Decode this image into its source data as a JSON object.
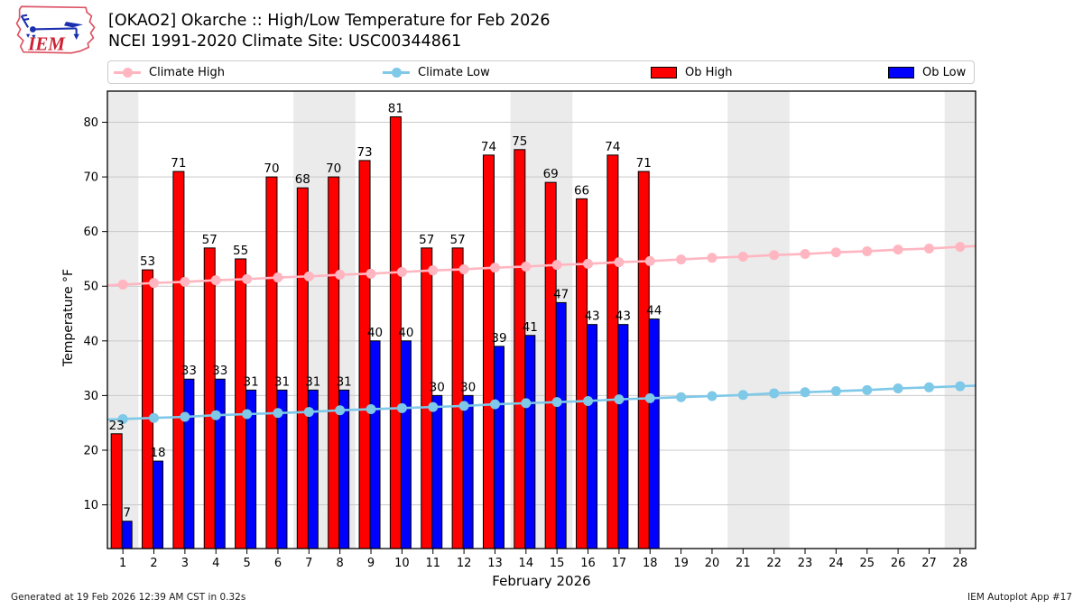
{
  "header": {
    "title_line1": "[OKAO2] Okarche :: High/Low Temperature for Feb 2026",
    "title_line2": "NCEI 1991-2020 Climate Site: USC00344861",
    "logo_text": "IEM"
  },
  "legend": {
    "position": "top",
    "items": [
      {
        "label": "Climate High",
        "type": "line",
        "color": "#ffb6c1"
      },
      {
        "label": "Climate Low",
        "type": "line",
        "color": "#7ec8e8"
      },
      {
        "label": "Ob High",
        "type": "rect",
        "color": "#ff0000"
      },
      {
        "label": "Ob Low",
        "type": "rect",
        "color": "#0000ff"
      }
    ]
  },
  "footer": {
    "left": "Generated at 19 Feb 2026 12:39 AM CST in 0.32s",
    "right": "IEM Autoplot App #17"
  },
  "chart_data": {
    "type": "bar",
    "title": "[OKAO2] Okarche :: High/Low Temperature for Feb 2026",
    "subtitle": "NCEI 1991-2020 Climate Site: USC00344861",
    "xlabel": "February 2026",
    "ylabel": "Temperature °F",
    "x_days": [
      1,
      2,
      3,
      4,
      5,
      6,
      7,
      8,
      9,
      10,
      11,
      12,
      13,
      14,
      15,
      16,
      17,
      18,
      19,
      20,
      21,
      22,
      23,
      24,
      25,
      26,
      27,
      28
    ],
    "y_ticks": [
      10,
      20,
      30,
      40,
      50,
      60,
      70,
      80
    ],
    "ylim": [
      2,
      85.7
    ],
    "grid": true,
    "weekend_shaded_days": [
      1,
      7,
      8,
      14,
      15,
      21,
      22,
      28
    ],
    "weekend_shade_color": "#ebebeb",
    "gridline_color": "#c9c9c9",
    "series": [
      {
        "name": "Ob High",
        "type": "bar",
        "color": "#ff0000",
        "edge": "#000000",
        "values": [
          23,
          53,
          71,
          57,
          55,
          70,
          68,
          70,
          73,
          81,
          57,
          57,
          74,
          75,
          69,
          66,
          74,
          71,
          null,
          null,
          null,
          null,
          null,
          null,
          null,
          null,
          null,
          null
        ]
      },
      {
        "name": "Ob Low",
        "type": "bar",
        "color": "#0000ff",
        "edge": "#000000",
        "values": [
          7,
          18,
          33,
          33,
          31,
          31,
          31,
          31,
          40,
          40,
          30,
          30,
          39,
          41,
          47,
          43,
          43,
          44,
          null,
          null,
          null,
          null,
          null,
          null,
          null,
          null,
          null,
          null
        ]
      },
      {
        "name": "Climate High",
        "type": "line",
        "color": "#ffb6c1",
        "values": [
          50.3,
          50.6,
          50.8,
          51.1,
          51.3,
          51.6,
          51.8,
          52.1,
          52.3,
          52.6,
          52.9,
          53.1,
          53.4,
          53.6,
          53.9,
          54.1,
          54.4,
          54.6,
          54.9,
          55.2,
          55.4,
          55.7,
          55.9,
          56.2,
          56.4,
          56.7,
          56.9,
          57.2
        ]
      },
      {
        "name": "Climate Low",
        "type": "line",
        "color": "#7ec8e8",
        "values": [
          25.7,
          25.9,
          26.1,
          26.4,
          26.6,
          26.8,
          27.0,
          27.3,
          27.5,
          27.7,
          27.9,
          28.1,
          28.4,
          28.6,
          28.8,
          29.0,
          29.3,
          29.5,
          29.7,
          29.9,
          30.1,
          30.4,
          30.6,
          30.8,
          31.0,
          31.3,
          31.5,
          31.7
        ]
      }
    ]
  }
}
